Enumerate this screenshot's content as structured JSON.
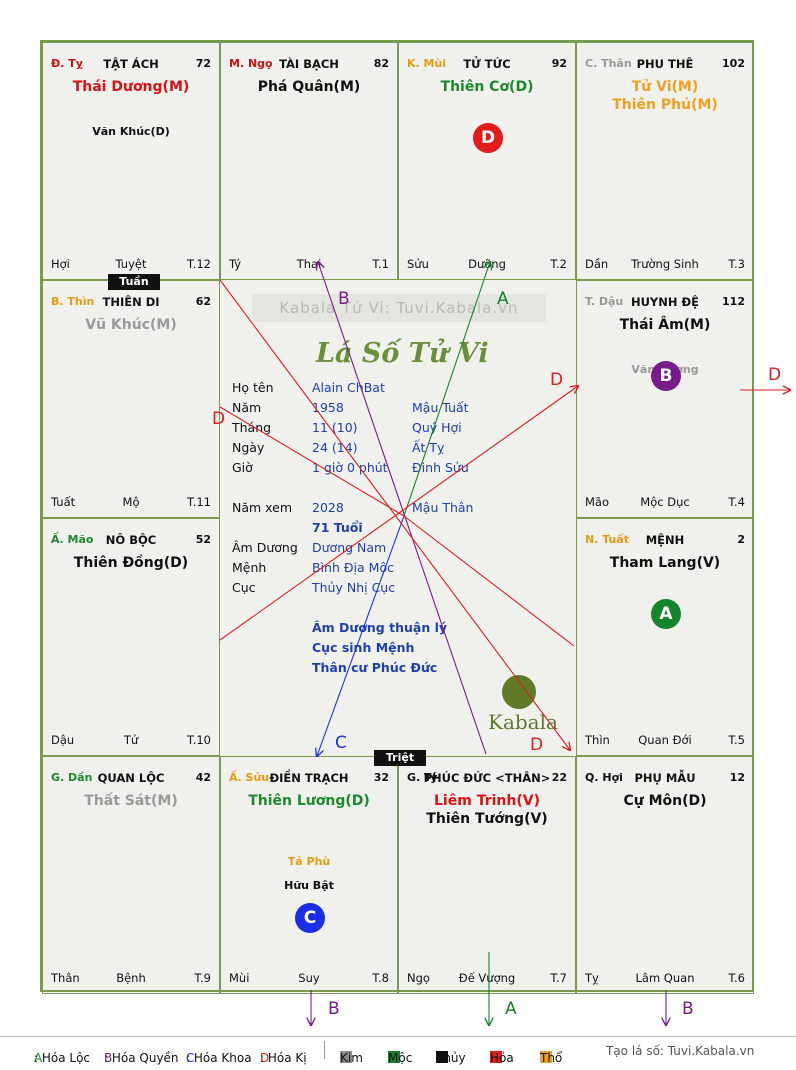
{
  "cells": [
    {
      "id": "ty",
      "branch": "Đ. Tỵ",
      "branch_color": "#cc1111",
      "name": "TẬT ÁCH",
      "num": "72",
      "majors": [
        {
          "text": "Thái Dương(M)",
          "color": "#dd1111"
        }
      ],
      "minors": [
        {
          "text": "Văn Khúc(D)",
          "color": "#111111"
        }
      ],
      "bottom": [
        "Hợi",
        "Tuyệt",
        "T.12"
      ]
    },
    {
      "id": "ngo",
      "branch": "M. Ngọ",
      "branch_color": "#cc1111",
      "name": "TÀI BẠCH",
      "num": "82",
      "majors": [
        {
          "text": "Phá Quân(M)",
          "color": "#111111"
        }
      ],
      "minors": [],
      "bottom": [
        "Tý",
        "Thai",
        "T.1"
      ]
    },
    {
      "id": "mui",
      "branch": "K. Mùi",
      "branch_color": "#e69a10",
      "name": "TỬ TỨC",
      "num": "92",
      "majors": [
        {
          "text": "Thiên Cơ(D)",
          "color": "#1a8a2a"
        }
      ],
      "minors": [],
      "circle": {
        "letter": "D",
        "color": "#e21b1b"
      },
      "bottom": [
        "Sửu",
        "Dưỡng",
        "T.2"
      ]
    },
    {
      "id": "than",
      "branch": "C. Thân",
      "branch_color": "#999999",
      "name": "PHU THÊ",
      "num": "102",
      "majors": [
        {
          "text": "Tử Vi(M)",
          "color": "#f0a020"
        },
        {
          "text": "Thiên Phủ(M)",
          "color": "#f0a020"
        }
      ],
      "minors": [],
      "bottom": [
        "Dần",
        "Trường Sinh",
        "T.3"
      ]
    },
    {
      "id": "thin",
      "branch": "B. Thìn",
      "branch_color": "#e69a10",
      "name": "THIÊN DI",
      "num": "62",
      "majors": [
        {
          "text": "Vũ Khúc(M)",
          "color": "#9a9a9a"
        }
      ],
      "minors": [],
      "bottom": [
        "Tuất",
        "Mộ",
        "T.11"
      ]
    },
    {
      "id": "dau",
      "branch": "T. Dậu",
      "branch_color": "#999999",
      "name": "HUYNH ĐỆ",
      "num": "112",
      "majors": [
        {
          "text": "Thái Âm(M)",
          "color": "#111111"
        }
      ],
      "minors": [
        {
          "text": "Văn Xương",
          "color": "#999999"
        }
      ],
      "circle": {
        "letter": "B",
        "color": "#7a1a8c"
      },
      "bottom": [
        "Mão",
        "Mộc Dục",
        "T.4"
      ]
    },
    {
      "id": "mao",
      "branch": "Ấ. Mão",
      "branch_color": "#1a8a2a",
      "name": "NÔ BỘC",
      "num": "52",
      "majors": [
        {
          "text": "Thiên Đồng(D)",
          "color": "#111111"
        }
      ],
      "minors": [],
      "bottom": [
        "Dậu",
        "Tử",
        "T.10"
      ]
    },
    {
      "id": "tuat",
      "branch": "N. Tuất",
      "branch_color": "#e69a10",
      "name": "MỆNH",
      "num": "2",
      "majors": [
        {
          "text": "Tham Lang(V)",
          "color": "#111111"
        }
      ],
      "minors": [],
      "circle": {
        "letter": "A",
        "color": "#13852a"
      },
      "bottom": [
        "Thìn",
        "Quan Đới",
        "T.5"
      ]
    },
    {
      "id": "dan",
      "branch": "G. Dần",
      "branch_color": "#1a8a2a",
      "name": "QUAN LỘC",
      "num": "42",
      "majors": [
        {
          "text": "Thất Sát(M)",
          "color": "#9a9a9a"
        }
      ],
      "minors": [],
      "bottom": [
        "Thân",
        "Bệnh",
        "T.9"
      ]
    },
    {
      "id": "suu",
      "branch": "Ấ. Sửu",
      "branch_color": "#e69a10",
      "name": "ĐIỀN TRẠCH",
      "num": "32",
      "majors": [
        {
          "text": "Thiên Lương(D)",
          "color": "#1a8a2a"
        }
      ],
      "minors": [
        {
          "text": "Tả Phù",
          "color": "#e69a10"
        },
        {
          "text": "Hữu Bật",
          "color": "#111111"
        }
      ],
      "circle": {
        "letter": "C",
        "color": "#1a2ee8"
      },
      "bottom": [
        "Mùi",
        "Suy",
        "T.8"
      ]
    },
    {
      "id": "ti",
      "branch": "G. Tý",
      "branch_color": "#111111",
      "name": "PHÚC ĐỨC <THÂN>",
      "num": "22",
      "majors": [
        {
          "text": "Liêm Trinh(V)",
          "color": "#dd1111"
        },
        {
          "text": "Thiên Tướng(V)",
          "color": "#111111"
        }
      ],
      "minors": [],
      "bottom": [
        "Ngọ",
        "Đế Vượng",
        "T.7"
      ]
    },
    {
      "id": "hoi",
      "branch": "Q. Hợi",
      "branch_color": "#111111",
      "name": "PHỤ MẪU",
      "num": "12",
      "majors": [
        {
          "text": "Cự Môn(D)",
          "color": "#111111"
        }
      ],
      "minors": [],
      "bottom": [
        "Tỵ",
        "Lâm Quan",
        "T.6"
      ]
    }
  ],
  "tags": {
    "tuan": "Tuần",
    "triet": "Triệt"
  },
  "center": {
    "watermark": "Kabala Tử Vi: Tuvi.Kabala.vn",
    "logo": "Lá Số Tử Vi",
    "brand": "Kabala",
    "rows": [
      {
        "label": "Họ tên",
        "v1": "Alain ChBat",
        "v2": ""
      },
      {
        "label": "Năm",
        "v1": "1958",
        "v2": "Mậu Tuất"
      },
      {
        "label": "Tháng",
        "v1": "11 (10)",
        "v2": "Quý Hợi"
      },
      {
        "label": "Ngày",
        "v1": "24 (14)",
        "v2": "Ất Tỵ"
      },
      {
        "label": "Giờ",
        "v1": "1 giờ 0 phút",
        "v2": "Đinh Sửu"
      },
      {
        "label": "Năm xem",
        "v1": "2028",
        "v2": "Mậu Thân"
      },
      {
        "label": "",
        "v1": "71 Tuổi",
        "v2": ""
      },
      {
        "label": "Âm Dương",
        "v1": "Dương Nam",
        "v2": ""
      },
      {
        "label": "Mệnh",
        "v1": "Bình Địa Mộc",
        "v2": ""
      },
      {
        "label": "Cục",
        "v1": "Thủy Nhị Cục",
        "v2": ""
      }
    ],
    "notes": [
      "Âm Dương thuận lý",
      "Cục sinh Mệnh",
      "Thân cư Phúc Đức"
    ]
  },
  "arrow_labels": {
    "a": "A",
    "b": "B",
    "c": "C",
    "d": "D"
  },
  "legend": {
    "items": [
      {
        "k": "A",
        "t": ": Hóa Lộc",
        "color": "#13852a"
      },
      {
        "k": "B",
        "t": ": Hóa Quyền",
        "color": "#7a1a8c"
      },
      {
        "k": "C",
        "t": ": Hóa Khoa",
        "color": "#1a2ee8"
      },
      {
        "k": "D",
        "t": ": Hóa Kị",
        "color": "#e21b1b"
      }
    ],
    "elements": [
      {
        "name": "Kim",
        "color": "#8c8c8c"
      },
      {
        "name": "Mộc",
        "color": "#13852a"
      },
      {
        "name": "Thủy",
        "color": "#111111"
      },
      {
        "name": "Hỏa",
        "color": "#e21b1b"
      },
      {
        "name": "Thổ",
        "color": "#f0a020"
      }
    ],
    "site": "Tạo lá số: Tuvi.Kabala.vn"
  }
}
